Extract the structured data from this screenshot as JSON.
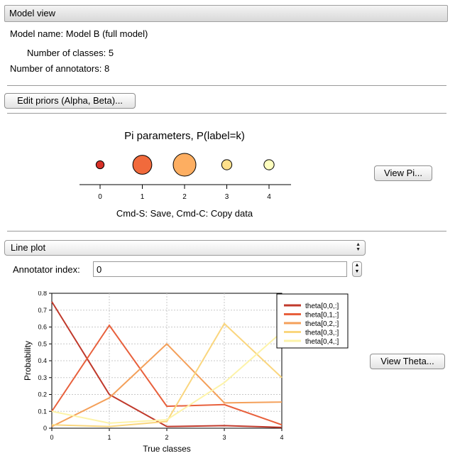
{
  "header": {
    "title": "Model view"
  },
  "model": {
    "name_label": "Model name:",
    "name_value": "Model B (full model)",
    "classes_label": "Number of classes:",
    "classes_value": "5",
    "annotators_label": "Number of annotators:",
    "annotators_value": "8"
  },
  "buttons": {
    "edit_priors": "Edit priors (Alpha, Beta)...",
    "view_pi": "View Pi...",
    "view_theta": "View Theta..."
  },
  "pi_plot": {
    "title": "Pi parameters, P(label=k)",
    "hint": "Cmd-S: Save, Cmd-C: Copy data"
  },
  "plot_select": {
    "selected": "Line plot"
  },
  "annotator": {
    "label": "Annotator index:",
    "value": "0"
  },
  "chart_data": [
    {
      "type": "scatter",
      "title": "Pi parameters, P(label=k)",
      "x": [
        0,
        1,
        2,
        3,
        4
      ],
      "tick_labels": [
        "0",
        "1",
        "2",
        "3",
        "4"
      ],
      "bubble_sizes_relative": [
        0.05,
        0.28,
        0.4,
        0.08,
        0.08
      ],
      "colors": [
        "#d73027",
        "#f16a3c",
        "#fdae61",
        "#fee08b",
        "#ffffbf"
      ]
    },
    {
      "type": "line",
      "xlabel": "True classes",
      "ylabel": "Probability",
      "x": [
        0,
        1,
        2,
        3,
        4
      ],
      "xlim": [
        0,
        4
      ],
      "ylim": [
        0,
        0.8
      ],
      "yticks": [
        "0",
        "0.1",
        "0.2",
        "0.3",
        "0.4",
        "0.5",
        "0.6",
        "0.7",
        "0.8"
      ],
      "xticks": [
        "0",
        "1",
        "2",
        "3",
        "4"
      ],
      "grid": true,
      "legend_position": "top-right",
      "series": [
        {
          "name": "theta[0,0,:]",
          "color": "#c0392b",
          "values": [
            0.75,
            0.2,
            0.01,
            0.015,
            0.005
          ]
        },
        {
          "name": "theta[0,1,:]",
          "color": "#e8603c",
          "values": [
            0.1,
            0.61,
            0.13,
            0.14,
            0.02
          ]
        },
        {
          "name": "theta[0,2,:]",
          "color": "#f4a05a",
          "values": [
            0.01,
            0.18,
            0.5,
            0.15,
            0.155
          ]
        },
        {
          "name": "theta[0,3,:]",
          "color": "#fad67e",
          "values": [
            0.02,
            0.01,
            0.04,
            0.62,
            0.3
          ]
        },
        {
          "name": "theta[0,4,:]",
          "color": "#fdf3a8",
          "values": [
            0.1,
            0.03,
            0.05,
            0.27,
            0.57
          ]
        }
      ]
    }
  ]
}
